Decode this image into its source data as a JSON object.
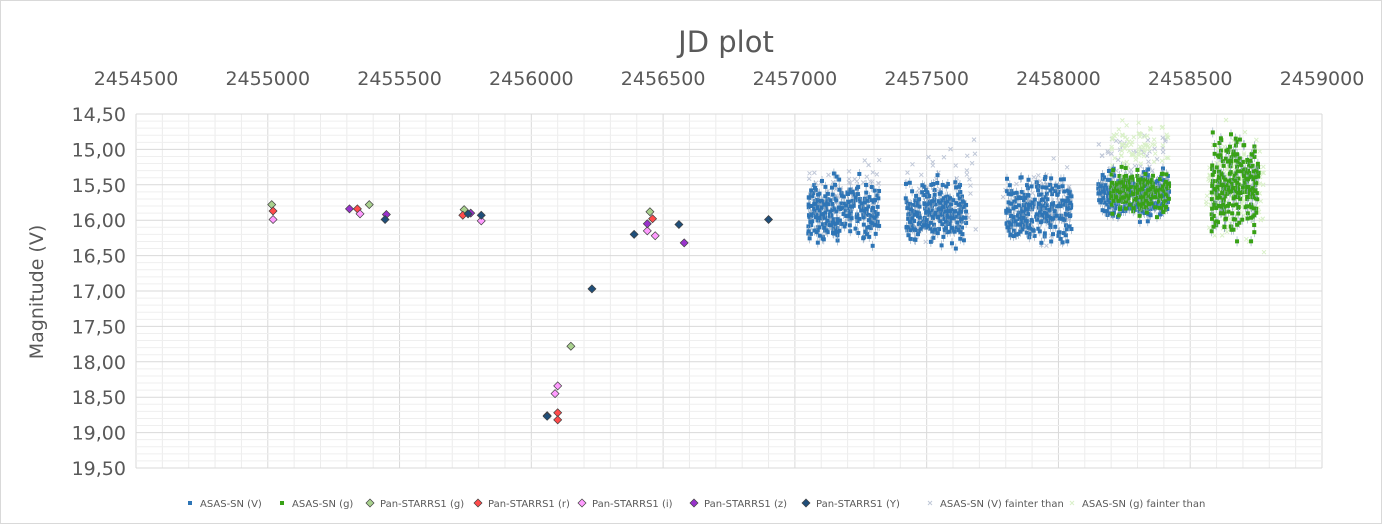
{
  "chart_data": {
    "type": "scatter",
    "title": "JD plot",
    "xlabel": "",
    "ylabel": "Magnitude (V)",
    "xlim": [
      2454500,
      2459000
    ],
    "ylim": [
      19.5,
      14.5
    ],
    "y_inverted": true,
    "x_axis_position": "top",
    "x_ticks": [
      "2454500",
      "2455000",
      "2455500",
      "2456000",
      "2456500",
      "2457000",
      "2457500",
      "2458000",
      "2458500",
      "2459000"
    ],
    "y_ticks": [
      "14,50",
      "15,00",
      "15,50",
      "16,00",
      "16,50",
      "17,00",
      "17,50",
      "18,00",
      "18,50",
      "19,00",
      "19,50"
    ],
    "grid": true,
    "legend_position": "bottom",
    "colors": {
      "asassn_v": "#2e75b6",
      "asassn_g": "#38a116",
      "ps_g": "#a9d18e",
      "ps_r": "#ff4b4b",
      "ps_i": "#ff9cff",
      "ps_z": "#9932cc",
      "ps_y": "#1f4e79",
      "faint_v": "#c0c8d8",
      "faint_g": "#d9f0c8"
    },
    "series": [
      {
        "name": "ASAS-SN (V)",
        "marker": "square",
        "clusters": [
          {
            "x": [
              2457050,
              2457320
            ],
            "y": [
              15.25,
              16.5
            ],
            "n": 260
          },
          {
            "x": [
              2457420,
              2457650
            ],
            "y": [
              15.3,
              16.5
            ],
            "n": 250
          },
          {
            "x": [
              2457800,
              2458050
            ],
            "y": [
              15.2,
              16.5
            ],
            "n": 260
          },
          {
            "x": [
              2458150,
              2458420
            ],
            "y": [
              15.2,
              16.1
            ],
            "n": 260
          }
        ]
      },
      {
        "name": "ASAS-SN (g)",
        "marker": "square",
        "clusters": [
          {
            "x": [
              2458200,
              2458420
            ],
            "y": [
              15.2,
              16.0
            ],
            "n": 230
          },
          {
            "x": [
              2458580,
              2458760
            ],
            "y": [
              14.6,
              16.4
            ],
            "n": 260
          }
        ]
      },
      {
        "name": "Pan-STARRS1 (g)",
        "marker": "diamond",
        "x": [
          2455015,
          2455385,
          2455745,
          2456150,
          2456450
        ],
        "y": [
          15.78,
          15.78,
          15.85,
          17.78,
          15.88
        ]
      },
      {
        "name": "Pan-STARRS1 (r)",
        "marker": "diamond",
        "x": [
          2455020,
          2455340,
          2455740,
          2456100,
          2456100,
          2456460
        ],
        "y": [
          15.87,
          15.84,
          15.93,
          18.72,
          18.82,
          15.98
        ]
      },
      {
        "name": "Pan-STARRS1 (i)",
        "marker": "diamond",
        "x": [
          2455020,
          2455350,
          2455810,
          2456090,
          2456100,
          2456440,
          2456470
        ],
        "y": [
          15.99,
          15.91,
          16.01,
          18.45,
          18.34,
          16.15,
          16.22
        ]
      },
      {
        "name": "Pan-STARRS1 (z)",
        "marker": "diamond",
        "x": [
          2455310,
          2455450,
          2455770,
          2456060,
          2456440,
          2456580
        ],
        "y": [
          15.84,
          15.92,
          15.9,
          18.76,
          16.05,
          16.32
        ]
      },
      {
        "name": "Pan-STARRS1 (Y)",
        "marker": "diamond",
        "x": [
          2455445,
          2455760,
          2455810,
          2456060,
          2456230,
          2456390,
          2456560,
          2456900
        ],
        "y": [
          15.99,
          15.91,
          15.93,
          18.77,
          16.97,
          16.2,
          16.06,
          15.99
        ]
      },
      {
        "name": "ASAS-SN (V) fainter than",
        "marker": "x",
        "clusters": [
          {
            "x": [
              2457050,
              2457320
            ],
            "y": [
              14.9,
              16.0
            ],
            "n": 40
          },
          {
            "x": [
              2457420,
              2457700
            ],
            "y": [
              14.6,
              16.6
            ],
            "n": 50
          },
          {
            "x": [
              2457790,
              2458050
            ],
            "y": [
              14.9,
              16.6
            ],
            "n": 50
          },
          {
            "x": [
              2458150,
              2458420
            ],
            "y": [
              14.5,
              15.6
            ],
            "n": 40
          }
        ]
      },
      {
        "name": "ASAS-SN (g) fainter than",
        "marker": "x",
        "clusters": [
          {
            "x": [
              2458200,
              2458420
            ],
            "y": [
              14.5,
              15.4
            ],
            "n": 80
          },
          {
            "x": [
              2458560,
              2458780
            ],
            "y": [
              14.5,
              16.6
            ],
            "n": 180
          }
        ]
      }
    ]
  }
}
